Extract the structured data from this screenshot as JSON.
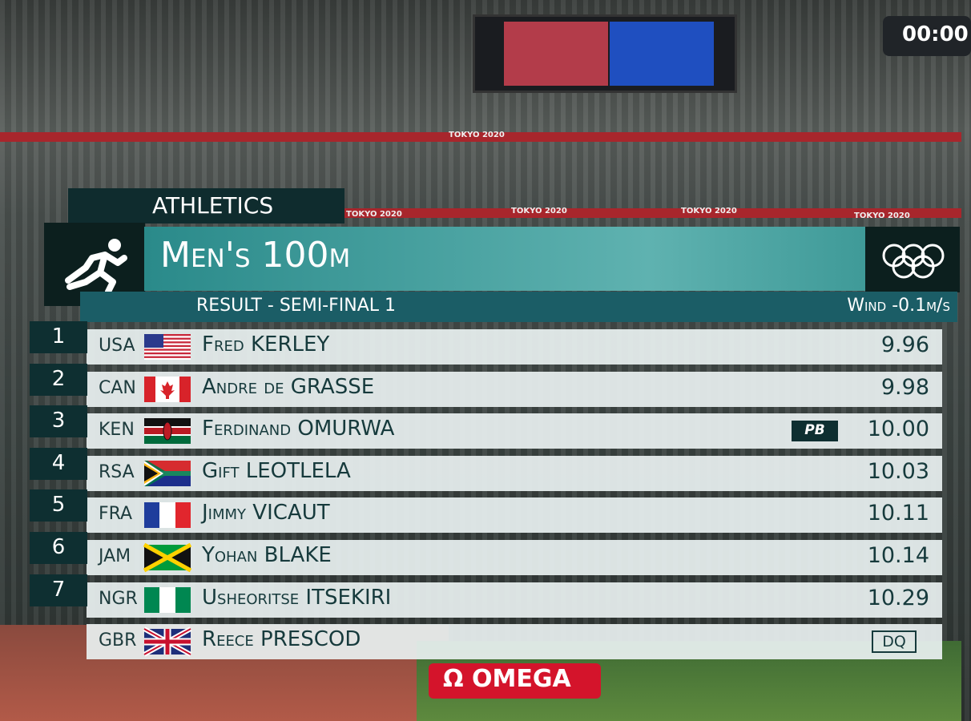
{
  "header": {
    "sport": "ATHLETICS",
    "event": "Men's 100m",
    "subtitle": "RESULT - SEMI-FINAL 1",
    "wind_label": "Wind",
    "wind_value": "-0.1m/s"
  },
  "banner": "TOKYO 2020",
  "clock": "00:00",
  "results": [
    {
      "rank": "1",
      "country": "USA",
      "name": "Fred KERLEY",
      "mark": "9.96"
    },
    {
      "rank": "2",
      "country": "CAN",
      "name": "Andre de GRASSE",
      "mark": "9.98"
    },
    {
      "rank": "3",
      "country": "KEN",
      "name": "Ferdinand OMURWA",
      "badge": "PB",
      "mark": "10.00"
    },
    {
      "rank": "4",
      "country": "RSA",
      "name": "Gift LEOTLELA",
      "mark": "10.03"
    },
    {
      "rank": "5",
      "country": "FRA",
      "name": "Jimmy VICAUT",
      "mark": "10.11"
    },
    {
      "rank": "6",
      "country": "JAM",
      "name": "Yohan BLAKE",
      "mark": "10.14"
    },
    {
      "rank": "7",
      "country": "NGR",
      "name": "Usheoritse ITSEKIRI",
      "mark": "10.29"
    },
    {
      "country": "GBR",
      "name": "Reece PRESCOD",
      "mark": "DQ"
    }
  ],
  "sponsor": {
    "symbol": "Ω",
    "name": "OMEGA"
  }
}
